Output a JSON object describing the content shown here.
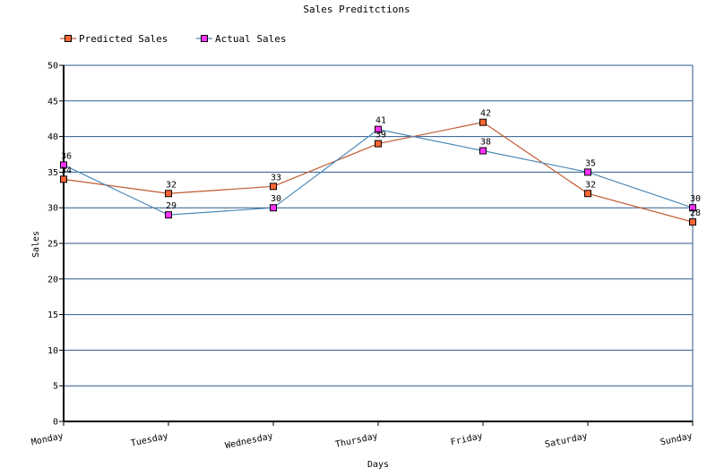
{
  "chart_data": {
    "type": "line",
    "title": "Sales Preditctions",
    "xlabel": "Days",
    "ylabel": "Sales",
    "categories": [
      "Monday",
      "Tuesday",
      "Wednesday",
      "Thursday",
      "Friday",
      "Saturday",
      "Sunday"
    ],
    "ylim": [
      0,
      50
    ],
    "yticks": [
      0,
      5,
      10,
      15,
      20,
      25,
      30,
      35,
      40,
      45,
      50
    ],
    "grid": true,
    "legend_position": "top-left",
    "series": [
      {
        "name": "Predicted Sales",
        "values": [
          34,
          32,
          33,
          39,
          42,
          32,
          28
        ],
        "line_color": "#c05a30",
        "marker_color": "#ff6633"
      },
      {
        "name": "Actual Sales",
        "values": [
          36,
          29,
          30,
          41,
          38,
          35,
          30
        ],
        "line_color": "#4a8ab8",
        "marker_color": "#ff33ff"
      }
    ]
  }
}
